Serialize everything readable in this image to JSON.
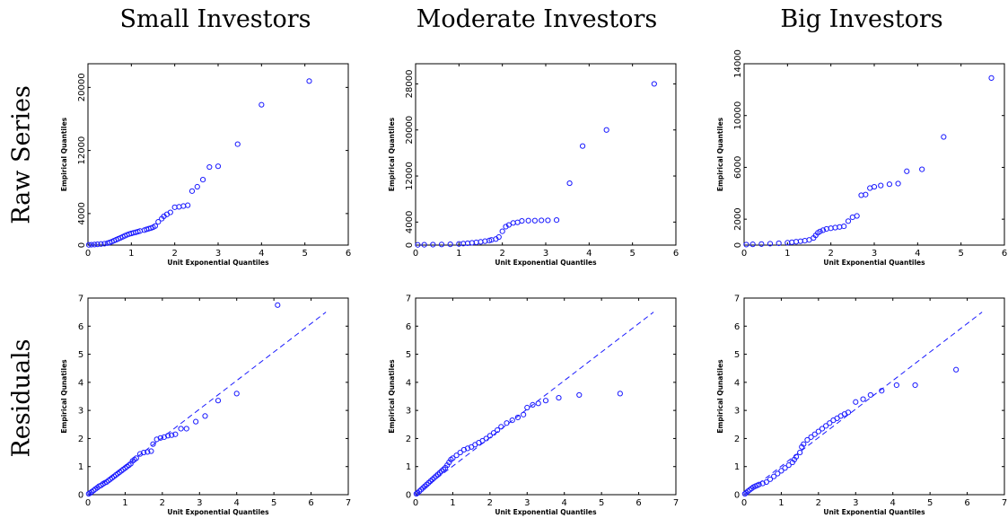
{
  "column_titles": [
    "Small Investors",
    "Moderate Investors",
    "Big Investors"
  ],
  "row_titles": [
    "Raw Series",
    "Residuals"
  ],
  "chart_data": [
    {
      "type": "scatter",
      "panel": "Small Investors / Raw Series",
      "xlabel": "Unit Exponential Quantiles",
      "ylabel": "Empirical Quantiles",
      "xlim": [
        0,
        6
      ],
      "ylim": [
        0,
        23000
      ],
      "xticks": [
        0,
        1,
        2,
        3,
        4,
        5,
        6
      ],
      "yticks": [
        0,
        4000,
        12000,
        20000
      ],
      "points": [
        [
          0.02,
          30
        ],
        [
          0.08,
          50
        ],
        [
          0.15,
          70
        ],
        [
          0.22,
          100
        ],
        [
          0.3,
          140
        ],
        [
          0.38,
          180
        ],
        [
          0.45,
          250
        ],
        [
          0.5,
          330
        ],
        [
          0.55,
          430
        ],
        [
          0.6,
          560
        ],
        [
          0.65,
          680
        ],
        [
          0.7,
          800
        ],
        [
          0.75,
          920
        ],
        [
          0.8,
          1050
        ],
        [
          0.85,
          1180
        ],
        [
          0.9,
          1300
        ],
        [
          0.95,
          1400
        ],
        [
          1.0,
          1480
        ],
        [
          1.05,
          1560
        ],
        [
          1.1,
          1620
        ],
        [
          1.15,
          1700
        ],
        [
          1.2,
          1780
        ],
        [
          1.3,
          1900
        ],
        [
          1.35,
          2000
        ],
        [
          1.4,
          2080
        ],
        [
          1.45,
          2150
        ],
        [
          1.5,
          2260
        ],
        [
          1.55,
          2420
        ],
        [
          1.62,
          2950
        ],
        [
          1.7,
          3350
        ],
        [
          1.75,
          3650
        ],
        [
          1.82,
          3900
        ],
        [
          1.9,
          4150
        ],
        [
          2.0,
          4800
        ],
        [
          2.1,
          4850
        ],
        [
          2.2,
          4950
        ],
        [
          2.3,
          5050
        ],
        [
          2.4,
          6850
        ],
        [
          2.52,
          7400
        ],
        [
          2.65,
          8300
        ],
        [
          2.8,
          9900
        ],
        [
          3.0,
          10000
        ],
        [
          3.45,
          12800
        ],
        [
          4.0,
          17800
        ],
        [
          5.1,
          20800
        ]
      ],
      "fit_line": null
    },
    {
      "type": "scatter",
      "panel": "Moderate Investors / Raw Series",
      "xlabel": "Unit Exponential Quantiles",
      "ylabel": "Empirical Quantiles",
      "xlim": [
        0,
        6
      ],
      "ylim": [
        0,
        31500
      ],
      "xticks": [
        0,
        1,
        2,
        3,
        4,
        5,
        6
      ],
      "yticks": [
        0,
        4000,
        12000,
        20000,
        28000
      ],
      "points": [
        [
          0.05,
          40
        ],
        [
          0.2,
          60
        ],
        [
          0.4,
          80
        ],
        [
          0.6,
          110
        ],
        [
          0.8,
          140
        ],
        [
          1.0,
          200
        ],
        [
          1.1,
          260
        ],
        [
          1.2,
          320
        ],
        [
          1.3,
          400
        ],
        [
          1.4,
          480
        ],
        [
          1.5,
          560
        ],
        [
          1.6,
          680
        ],
        [
          1.7,
          800
        ],
        [
          1.75,
          900
        ],
        [
          1.85,
          1050
        ],
        [
          1.92,
          1400
        ],
        [
          2.0,
          2400
        ],
        [
          2.08,
          3200
        ],
        [
          2.15,
          3500
        ],
        [
          2.25,
          3850
        ],
        [
          2.35,
          3950
        ],
        [
          2.45,
          4200
        ],
        [
          2.6,
          4250
        ],
        [
          2.75,
          4250
        ],
        [
          2.9,
          4300
        ],
        [
          3.05,
          4300
        ],
        [
          3.25,
          4350
        ],
        [
          3.55,
          10750
        ],
        [
          3.85,
          17200
        ],
        [
          4.4,
          20000
        ],
        [
          5.5,
          28000
        ]
      ],
      "fit_line": null
    },
    {
      "type": "scatter",
      "panel": "Big Investors / Raw Series",
      "xlabel": "Unit Exponential Quantiles",
      "ylabel": "Empirical Quantiles",
      "xlim": [
        0,
        6
      ],
      "ylim": [
        0,
        14000
      ],
      "xticks": [
        0,
        1,
        2,
        3,
        4,
        5,
        6
      ],
      "yticks": [
        0,
        2000,
        6000,
        10000,
        14000
      ],
      "points": [
        [
          0.05,
          40
        ],
        [
          0.2,
          60
        ],
        [
          0.4,
          80
        ],
        [
          0.6,
          110
        ],
        [
          0.8,
          140
        ],
        [
          1.0,
          180
        ],
        [
          1.1,
          220
        ],
        [
          1.2,
          260
        ],
        [
          1.3,
          300
        ],
        [
          1.4,
          340
        ],
        [
          1.5,
          400
        ],
        [
          1.6,
          550
        ],
        [
          1.65,
          750
        ],
        [
          1.7,
          950
        ],
        [
          1.75,
          1050
        ],
        [
          1.82,
          1150
        ],
        [
          1.9,
          1250
        ],
        [
          2.0,
          1300
        ],
        [
          2.1,
          1350
        ],
        [
          2.2,
          1400
        ],
        [
          2.3,
          1450
        ],
        [
          2.4,
          1850
        ],
        [
          2.5,
          2150
        ],
        [
          2.6,
          2250
        ],
        [
          2.7,
          3850
        ],
        [
          2.8,
          3900
        ],
        [
          2.9,
          4400
        ],
        [
          3.0,
          4500
        ],
        [
          3.15,
          4600
        ],
        [
          3.35,
          4700
        ],
        [
          3.55,
          4750
        ],
        [
          3.75,
          5700
        ],
        [
          4.1,
          5850
        ],
        [
          4.6,
          8350
        ],
        [
          5.7,
          12900
        ]
      ],
      "fit_line": null
    },
    {
      "type": "scatter",
      "panel": "Small Investors / Residuals",
      "xlabel": "Unit Exponential Quantiles",
      "ylabel": "Empirical Qunatiles",
      "xlim": [
        0,
        7
      ],
      "ylim": [
        0,
        7
      ],
      "xticks": [
        0,
        1,
        2,
        3,
        4,
        5,
        6,
        7
      ],
      "yticks": [
        0,
        1,
        2,
        3,
        4,
        5,
        6,
        7
      ],
      "points": [
        [
          0.02,
          0.03
        ],
        [
          0.06,
          0.06
        ],
        [
          0.1,
          0.1
        ],
        [
          0.15,
          0.15
        ],
        [
          0.2,
          0.2
        ],
        [
          0.25,
          0.25
        ],
        [
          0.3,
          0.3
        ],
        [
          0.35,
          0.33
        ],
        [
          0.4,
          0.38
        ],
        [
          0.45,
          0.42
        ],
        [
          0.5,
          0.45
        ],
        [
          0.55,
          0.5
        ],
        [
          0.6,
          0.55
        ],
        [
          0.65,
          0.6
        ],
        [
          0.7,
          0.65
        ],
        [
          0.75,
          0.7
        ],
        [
          0.8,
          0.75
        ],
        [
          0.85,
          0.8
        ],
        [
          0.9,
          0.85
        ],
        [
          0.95,
          0.9
        ],
        [
          1.0,
          0.95
        ],
        [
          1.05,
          1.0
        ],
        [
          1.1,
          1.05
        ],
        [
          1.15,
          1.1
        ],
        [
          1.2,
          1.2
        ],
        [
          1.25,
          1.25
        ],
        [
          1.3,
          1.3
        ],
        [
          1.4,
          1.45
        ],
        [
          1.5,
          1.5
        ],
        [
          1.6,
          1.52
        ],
        [
          1.7,
          1.55
        ],
        [
          1.75,
          1.8
        ],
        [
          1.85,
          1.97
        ],
        [
          1.95,
          2.02
        ],
        [
          2.05,
          2.05
        ],
        [
          2.15,
          2.1
        ],
        [
          2.25,
          2.12
        ],
        [
          2.35,
          2.15
        ],
        [
          2.5,
          2.35
        ],
        [
          2.65,
          2.35
        ],
        [
          2.9,
          2.6
        ],
        [
          3.15,
          2.8
        ],
        [
          3.5,
          3.35
        ],
        [
          4.0,
          3.6
        ],
        [
          5.1,
          6.75
        ]
      ],
      "fit_line": [
        [
          0,
          0
        ],
        [
          6.4,
          6.5
        ]
      ]
    },
    {
      "type": "scatter",
      "panel": "Moderate Investors / Residuals",
      "xlabel": "Unit Exponential Quantiles",
      "ylabel": "Empirical Qunatiles",
      "xlim": [
        0,
        7
      ],
      "ylim": [
        0,
        7
      ],
      "xticks": [
        0,
        1,
        2,
        3,
        4,
        5,
        6,
        7
      ],
      "yticks": [
        0,
        1,
        2,
        3,
        4,
        5,
        6,
        7
      ],
      "points": [
        [
          0.02,
          0.03
        ],
        [
          0.05,
          0.06
        ],
        [
          0.1,
          0.12
        ],
        [
          0.15,
          0.18
        ],
        [
          0.2,
          0.24
        ],
        [
          0.25,
          0.3
        ],
        [
          0.3,
          0.36
        ],
        [
          0.35,
          0.42
        ],
        [
          0.4,
          0.48
        ],
        [
          0.45,
          0.54
        ],
        [
          0.5,
          0.6
        ],
        [
          0.55,
          0.66
        ],
        [
          0.6,
          0.72
        ],
        [
          0.65,
          0.78
        ],
        [
          0.7,
          0.84
        ],
        [
          0.75,
          0.9
        ],
        [
          0.8,
          0.96
        ],
        [
          0.85,
          1.05
        ],
        [
          0.9,
          1.15
        ],
        [
          0.95,
          1.25
        ],
        [
          1.0,
          1.3
        ],
        [
          1.1,
          1.4
        ],
        [
          1.2,
          1.5
        ],
        [
          1.3,
          1.6
        ],
        [
          1.4,
          1.65
        ],
        [
          1.5,
          1.7
        ],
        [
          1.6,
          1.78
        ],
        [
          1.7,
          1.85
        ],
        [
          1.8,
          1.92
        ],
        [
          1.9,
          2.0
        ],
        [
          2.0,
          2.1
        ],
        [
          2.1,
          2.2
        ],
        [
          2.2,
          2.3
        ],
        [
          2.3,
          2.42
        ],
        [
          2.45,
          2.55
        ],
        [
          2.6,
          2.65
        ],
        [
          2.75,
          2.75
        ],
        [
          2.9,
          2.85
        ],
        [
          3.0,
          3.1
        ],
        [
          3.15,
          3.2
        ],
        [
          3.3,
          3.25
        ],
        [
          3.5,
          3.35
        ],
        [
          3.85,
          3.45
        ],
        [
          4.4,
          3.55
        ],
        [
          5.5,
          3.6
        ]
      ],
      "fit_line": [
        [
          0,
          0
        ],
        [
          6.4,
          6.5
        ]
      ]
    },
    {
      "type": "scatter",
      "panel": "Big Investors / Residuals",
      "xlabel": "Unit Exponential Quantiles",
      "ylabel": "Empirical Qunatiles",
      "xlim": [
        0,
        7
      ],
      "ylim": [
        0,
        7
      ],
      "xticks": [
        0,
        1,
        2,
        3,
        4,
        5,
        6,
        7
      ],
      "yticks": [
        0,
        1,
        2,
        3,
        4,
        5,
        6,
        7
      ],
      "points": [
        [
          0.02,
          0.03
        ],
        [
          0.06,
          0.07
        ],
        [
          0.1,
          0.12
        ],
        [
          0.15,
          0.17
        ],
        [
          0.2,
          0.22
        ],
        [
          0.25,
          0.27
        ],
        [
          0.3,
          0.3
        ],
        [
          0.35,
          0.33
        ],
        [
          0.4,
          0.36
        ],
        [
          0.5,
          0.4
        ],
        [
          0.6,
          0.45
        ],
        [
          0.7,
          0.55
        ],
        [
          0.8,
          0.65
        ],
        [
          0.9,
          0.75
        ],
        [
          1.0,
          0.85
        ],
        [
          1.1,
          0.95
        ],
        [
          1.2,
          1.05
        ],
        [
          1.3,
          1.15
        ],
        [
          1.35,
          1.25
        ],
        [
          1.4,
          1.35
        ],
        [
          1.5,
          1.5
        ],
        [
          1.55,
          1.7
        ],
        [
          1.6,
          1.8
        ],
        [
          1.7,
          1.95
        ],
        [
          1.8,
          2.05
        ],
        [
          1.9,
          2.15
        ],
        [
          2.0,
          2.25
        ],
        [
          2.1,
          2.35
        ],
        [
          2.2,
          2.45
        ],
        [
          2.3,
          2.55
        ],
        [
          2.4,
          2.65
        ],
        [
          2.5,
          2.72
        ],
        [
          2.6,
          2.8
        ],
        [
          2.7,
          2.87
        ],
        [
          2.8,
          2.93
        ],
        [
          3.0,
          3.3
        ],
        [
          3.2,
          3.4
        ],
        [
          3.4,
          3.55
        ],
        [
          3.7,
          3.7
        ],
        [
          4.1,
          3.9
        ],
        [
          4.6,
          3.9
        ],
        [
          5.7,
          4.45
        ]
      ],
      "fit_line": [
        [
          0,
          0
        ],
        [
          6.4,
          6.5
        ]
      ]
    }
  ]
}
